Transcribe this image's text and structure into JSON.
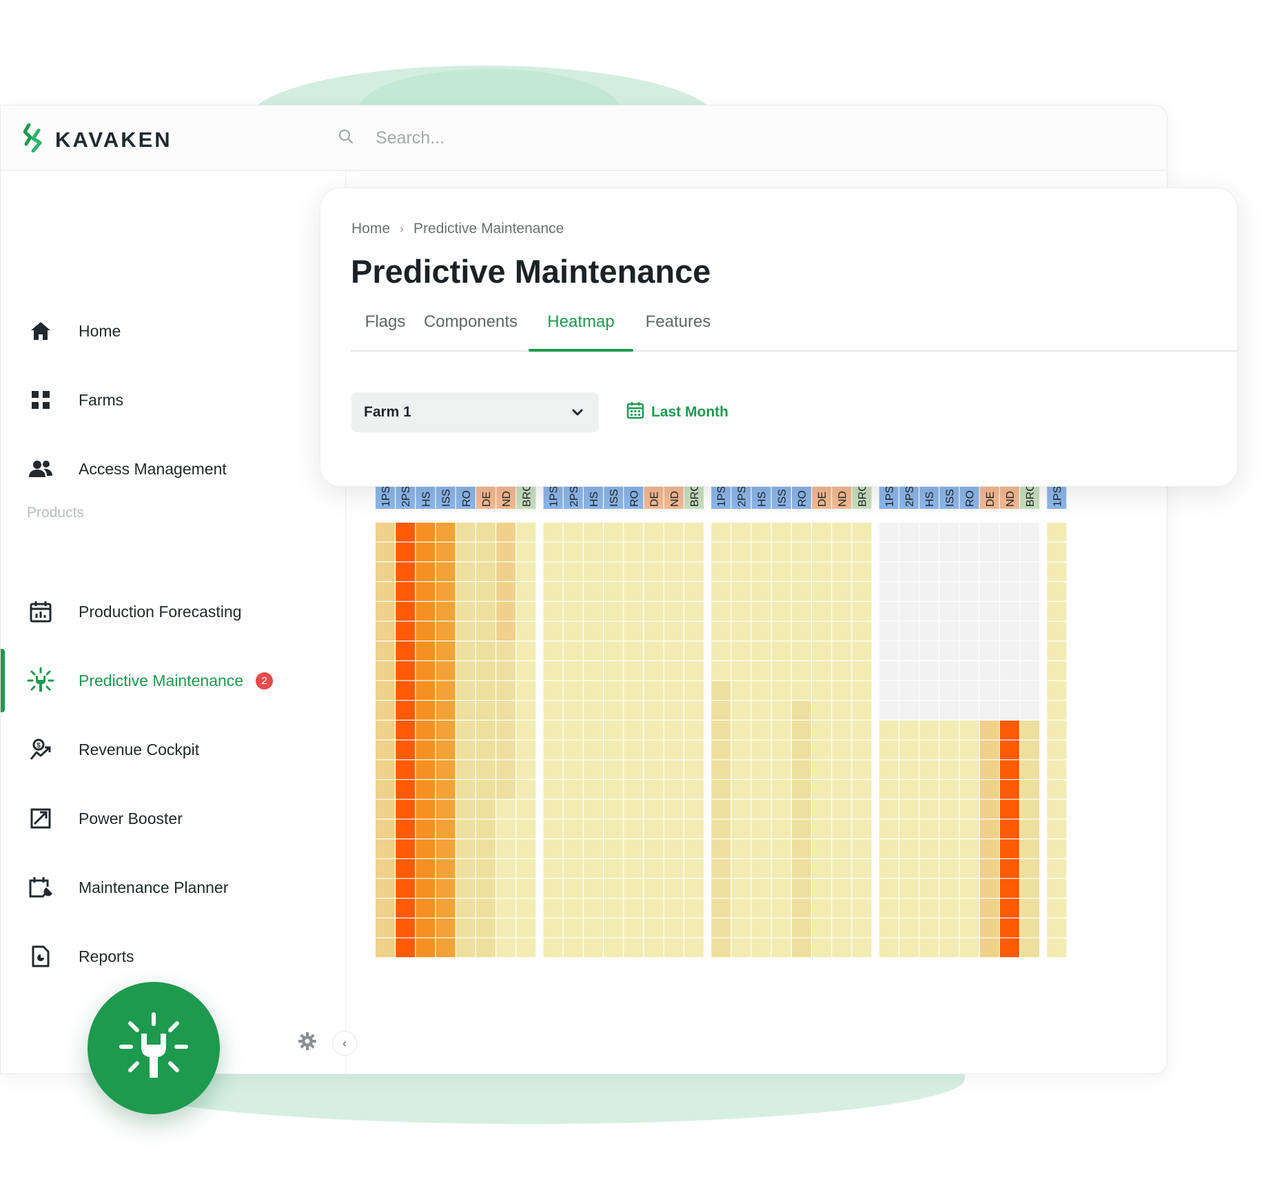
{
  "brand": {
    "name": "KAVAKEN",
    "green": "#1c9a4f"
  },
  "search": {
    "placeholder": "Search..."
  },
  "sidebar": {
    "items": [
      {
        "label": "Home",
        "icon": "home-icon"
      },
      {
        "label": "Farms",
        "icon": "grid-icon"
      },
      {
        "label": "Access Management",
        "icon": "users-icon"
      }
    ],
    "section_label": "Products",
    "products": [
      {
        "label": "Production Forecasting",
        "icon": "calendar-chart-icon"
      },
      {
        "label": "Predictive Maintenance",
        "icon": "maintenance-icon",
        "active": true,
        "badge": "2"
      },
      {
        "label": "Revenue Cockpit",
        "icon": "revenue-icon"
      },
      {
        "label": "Power Booster",
        "icon": "power-booster-icon"
      },
      {
        "label": "Maintenance Planner",
        "icon": "maintenance-planner-icon"
      },
      {
        "label": "Reports",
        "icon": "report-icon"
      }
    ]
  },
  "breadcrumb": {
    "home": "Home",
    "current": "Predictive Maintenance"
  },
  "page": {
    "title": "Predictive Maintenance"
  },
  "tabs": [
    {
      "label": "Flags"
    },
    {
      "label": "Components"
    },
    {
      "label": "Heatmap",
      "active": true
    },
    {
      "label": "Features"
    }
  ],
  "filters": {
    "farm": "Farm 1",
    "date_range": "Last Month"
  },
  "chart_data": {
    "type": "heatmap",
    "groups": 4,
    "rows": 22,
    "columns": [
      "1PS",
      "2PS",
      "HS",
      "ISS",
      "RO",
      "DE",
      "ND",
      "BRG"
    ],
    "column_colors": {
      "1PS": "#8cb6ea",
      "2PS": "#8cb6ea",
      "HS": "#8cb6ea",
      "ISS": "#8cb6ea",
      "RO": "#8cb6ea",
      "DE": "#f4ba93",
      "ND": "#f4ba93",
      "BRG": "#c7dfbe"
    },
    "color_scale": {
      "no_data": "#f2f2f2",
      "levels": [
        "#f2ecb3",
        "#eedf9e",
        "#f0d18a",
        "#eeb75a",
        "#f3a237",
        "#f69121",
        "#fe5b02"
      ]
    },
    "cells": [
      [
        [
          2,
          6,
          5,
          4,
          1,
          1,
          2,
          0
        ],
        [
          2,
          6,
          5,
          4,
          1,
          1,
          2,
          0
        ],
        [
          2,
          6,
          5,
          4,
          1,
          1,
          2,
          0
        ],
        [
          2,
          6,
          5,
          4,
          1,
          1,
          2,
          0
        ],
        [
          2,
          6,
          5,
          4,
          1,
          1,
          2,
          0
        ],
        [
          2,
          6,
          5,
          4,
          1,
          1,
          2,
          0
        ],
        [
          2,
          6,
          5,
          4,
          1,
          1,
          1,
          0
        ],
        [
          2,
          6,
          5,
          4,
          1,
          1,
          1,
          0
        ],
        [
          2,
          6,
          5,
          4,
          1,
          1,
          1,
          0
        ],
        [
          2,
          6,
          5,
          4,
          1,
          1,
          1,
          0
        ],
        [
          2,
          6,
          5,
          4,
          1,
          1,
          1,
          0
        ],
        [
          2,
          6,
          5,
          4,
          1,
          1,
          1,
          0
        ],
        [
          2,
          6,
          5,
          4,
          1,
          1,
          1,
          0
        ],
        [
          2,
          6,
          5,
          4,
          1,
          1,
          1,
          0
        ],
        [
          2,
          6,
          5,
          4,
          1,
          1,
          0,
          0
        ],
        [
          2,
          6,
          5,
          4,
          1,
          1,
          0,
          0
        ],
        [
          2,
          6,
          5,
          4,
          1,
          1,
          0,
          0
        ],
        [
          2,
          6,
          5,
          4,
          1,
          1,
          0,
          0
        ],
        [
          2,
          6,
          5,
          4,
          1,
          1,
          0,
          0
        ],
        [
          2,
          6,
          5,
          4,
          1,
          1,
          0,
          0
        ],
        [
          2,
          6,
          5,
          4,
          1,
          1,
          0,
          0
        ],
        [
          2,
          6,
          5,
          4,
          1,
          1,
          0,
          0
        ]
      ],
      [
        [
          0,
          0,
          0,
          0,
          0,
          0,
          0,
          0
        ],
        [
          0,
          0,
          0,
          0,
          0,
          0,
          0,
          0
        ],
        [
          0,
          0,
          0,
          0,
          0,
          0,
          0,
          0
        ],
        [
          0,
          0,
          0,
          0,
          0,
          0,
          0,
          0
        ],
        [
          0,
          0,
          0,
          0,
          0,
          0,
          0,
          0
        ],
        [
          0,
          0,
          0,
          0,
          0,
          0,
          0,
          0
        ],
        [
          0,
          0,
          0,
          0,
          0,
          0,
          0,
          0
        ],
        [
          0,
          0,
          0,
          0,
          0,
          0,
          0,
          0
        ],
        [
          0,
          0,
          0,
          0,
          0,
          0,
          0,
          0
        ],
        [
          0,
          0,
          0,
          0,
          0,
          0,
          0,
          0
        ],
        [
          0,
          0,
          0,
          0,
          0,
          0,
          0,
          0
        ],
        [
          0,
          0,
          0,
          0,
          0,
          0,
          0,
          0
        ],
        [
          0,
          0,
          0,
          0,
          0,
          0,
          0,
          0
        ],
        [
          0,
          0,
          0,
          0,
          0,
          0,
          0,
          0
        ],
        [
          0,
          0,
          0,
          0,
          0,
          0,
          0,
          0
        ],
        [
          0,
          0,
          0,
          0,
          0,
          0,
          0,
          0
        ],
        [
          0,
          0,
          0,
          0,
          0,
          0,
          0,
          0
        ],
        [
          0,
          0,
          0,
          0,
          0,
          0,
          0,
          0
        ],
        [
          0,
          0,
          0,
          0,
          0,
          0,
          0,
          0
        ],
        [
          0,
          0,
          0,
          0,
          0,
          0,
          0,
          0
        ],
        [
          0,
          0,
          0,
          0,
          0,
          0,
          0,
          0
        ],
        [
          0,
          0,
          0,
          0,
          0,
          0,
          0,
          0
        ]
      ],
      [
        [
          0,
          0,
          0,
          0,
          0,
          0,
          0,
          0
        ],
        [
          0,
          0,
          0,
          0,
          0,
          0,
          0,
          0
        ],
        [
          0,
          0,
          0,
          0,
          0,
          0,
          0,
          0
        ],
        [
          0,
          0,
          0,
          0,
          0,
          0,
          0,
          0
        ],
        [
          0,
          0,
          0,
          0,
          0,
          0,
          0,
          0
        ],
        [
          0,
          0,
          0,
          0,
          0,
          0,
          0,
          0
        ],
        [
          0,
          0,
          0,
          0,
          0,
          0,
          0,
          0
        ],
        [
          0,
          0,
          0,
          0,
          0,
          0,
          0,
          0
        ],
        [
          1,
          0,
          0,
          0,
          0,
          0,
          0,
          0
        ],
        [
          1,
          0,
          0,
          0,
          1,
          0,
          0,
          0
        ],
        [
          1,
          0,
          0,
          0,
          1,
          0,
          0,
          0
        ],
        [
          1,
          0,
          0,
          0,
          1,
          0,
          0,
          0
        ],
        [
          1,
          0,
          0,
          0,
          1,
          0,
          0,
          0
        ],
        [
          1,
          0,
          0,
          0,
          1,
          0,
          0,
          0
        ],
        [
          1,
          0,
          0,
          0,
          1,
          0,
          0,
          0
        ],
        [
          1,
          0,
          0,
          0,
          1,
          0,
          0,
          0
        ],
        [
          1,
          0,
          0,
          0,
          1,
          0,
          0,
          0
        ],
        [
          1,
          0,
          0,
          0,
          1,
          0,
          0,
          0
        ],
        [
          1,
          0,
          0,
          0,
          1,
          0,
          0,
          0
        ],
        [
          1,
          0,
          0,
          0,
          1,
          0,
          0,
          0
        ],
        [
          1,
          0,
          0,
          0,
          1,
          0,
          0,
          0
        ],
        [
          1,
          0,
          0,
          0,
          1,
          0,
          0,
          0
        ]
      ],
      [
        [
          null,
          null,
          null,
          null,
          null,
          null,
          null,
          null
        ],
        [
          null,
          null,
          null,
          null,
          null,
          null,
          null,
          null
        ],
        [
          null,
          null,
          null,
          null,
          null,
          null,
          null,
          null
        ],
        [
          null,
          null,
          null,
          null,
          null,
          null,
          null,
          null
        ],
        [
          null,
          null,
          null,
          null,
          null,
          null,
          null,
          null
        ],
        [
          null,
          null,
          null,
          null,
          null,
          null,
          null,
          null
        ],
        [
          null,
          null,
          null,
          null,
          null,
          null,
          null,
          null
        ],
        [
          null,
          null,
          null,
          null,
          null,
          null,
          null,
          null
        ],
        [
          null,
          null,
          null,
          null,
          null,
          null,
          null,
          null
        ],
        [
          null,
          null,
          null,
          null,
          null,
          null,
          null,
          null
        ],
        [
          0,
          0,
          0,
          0,
          0,
          2,
          6,
          1
        ],
        [
          0,
          0,
          0,
          0,
          0,
          2,
          6,
          1
        ],
        [
          0,
          0,
          0,
          0,
          0,
          2,
          6,
          1
        ],
        [
          0,
          0,
          0,
          0,
          0,
          2,
          6,
          1
        ],
        [
          0,
          0,
          0,
          0,
          0,
          2,
          6,
          1
        ],
        [
          0,
          0,
          0,
          0,
          0,
          2,
          6,
          1
        ],
        [
          0,
          0,
          0,
          0,
          0,
          2,
          6,
          1
        ],
        [
          0,
          0,
          0,
          0,
          0,
          2,
          6,
          1
        ],
        [
          0,
          0,
          0,
          0,
          0,
          2,
          6,
          1
        ],
        [
          0,
          0,
          0,
          0,
          0,
          2,
          6,
          1
        ],
        [
          0,
          0,
          0,
          0,
          0,
          2,
          6,
          1
        ],
        [
          0,
          0,
          0,
          0,
          0,
          2,
          6,
          1
        ]
      ]
    ],
    "trailing_column": {
      "label": "1PS",
      "color": "#8cb6ea",
      "level": 0
    }
  }
}
